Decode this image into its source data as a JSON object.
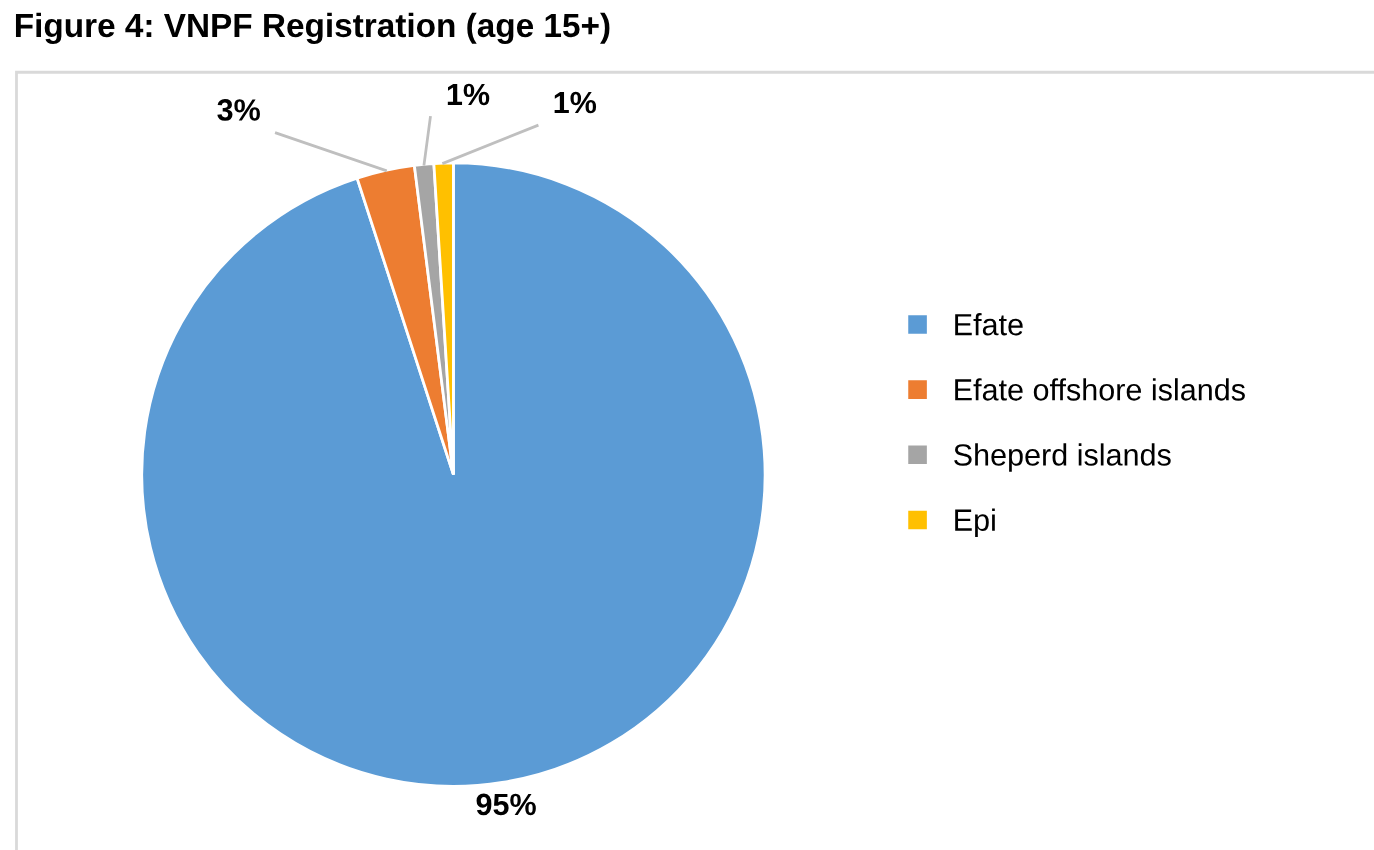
{
  "chart_data": {
    "type": "pie",
    "title": "Figure 4: VNPF Registration (age 15+)",
    "categories": [
      "Efate",
      "Efate offshore islands",
      "Sheperd islands",
      "Epi"
    ],
    "values": [
      95,
      3,
      1,
      1
    ],
    "colors": [
      "#5b9bd5",
      "#ed7d31",
      "#a5a5a5",
      "#ffc000"
    ],
    "value_labels": [
      "95%",
      "3%",
      "1%",
      "1%"
    ],
    "legend": "right"
  }
}
